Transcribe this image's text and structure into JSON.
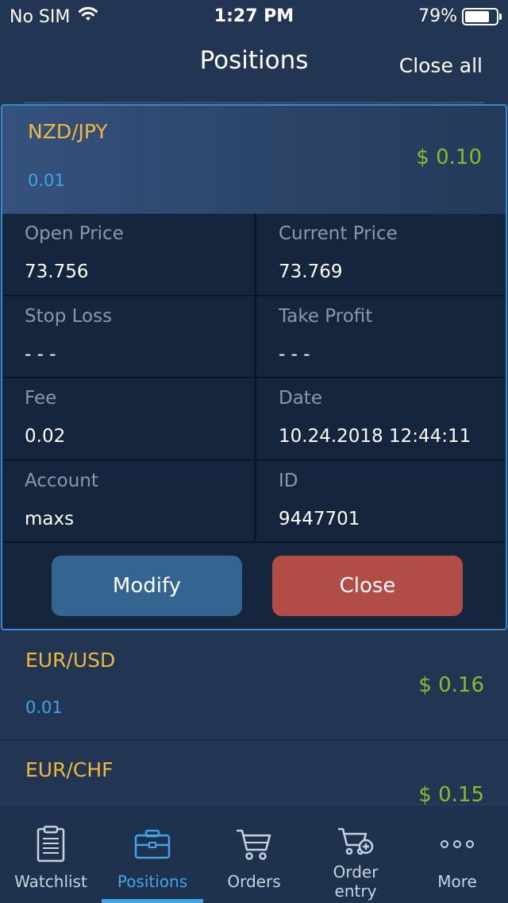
{
  "status_bar": {
    "carrier": "No SIM",
    "time": "1:27 PM",
    "battery": "79%",
    "battery_level": 0.79
  },
  "header": {
    "title": "Positions",
    "close_all": "Close all"
  },
  "expanded_position": {
    "symbol": "NZD/JPY",
    "lot": "0.01",
    "pnl": "$ 0.10",
    "fields": [
      {
        "label": "Open Price",
        "value": "73.756"
      },
      {
        "label": "Current Price",
        "value": "73.769"
      },
      {
        "label": "Stop Loss",
        "value": "- - -"
      },
      {
        "label": "Take Profit",
        "value": "- - -"
      },
      {
        "label": "Fee",
        "value": "0.02"
      },
      {
        "label": "Date",
        "value": "10.24.2018 12:44:11"
      },
      {
        "label": "Account",
        "value": "maxs"
      },
      {
        "label": "ID",
        "value": "9447701"
      }
    ],
    "modify_label": "Modify",
    "close_label": "Close"
  },
  "positions": [
    {
      "symbol": "EUR/USD",
      "lot": "0.01",
      "pnl": "$ 0.16"
    },
    {
      "symbol": "EUR/CHF",
      "pnl": "$ 0.15"
    }
  ],
  "tabs": [
    {
      "label": "Watchlist",
      "icon": "clipboard-icon"
    },
    {
      "label": "Positions",
      "icon": "briefcase-icon",
      "active": true
    },
    {
      "label": "Orders",
      "icon": "cart-icon"
    },
    {
      "label": "Order entry",
      "line1": "Order",
      "line2": "entry",
      "icon": "cart-plus-icon"
    },
    {
      "label": "More",
      "icon": "more-dots-icon"
    }
  ],
  "colors": {
    "background": "#223552",
    "accent": "#41a4e6",
    "symbol": "#f0b83c",
    "profit": "#86bd2a",
    "close_button": "#b14d46",
    "modify_button": "#336590"
  }
}
